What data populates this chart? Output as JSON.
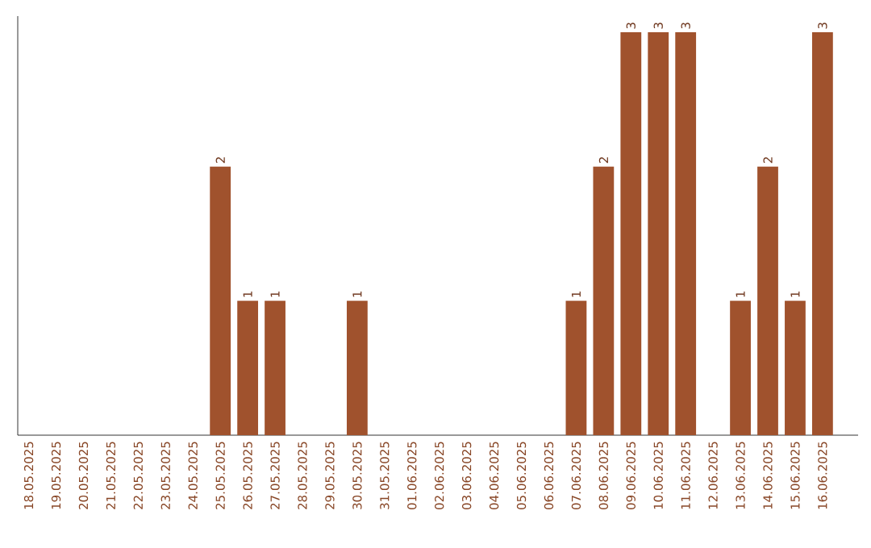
{
  "chart_data": {
    "type": "bar",
    "categories": [
      "18.05.2025",
      "19.05.2025",
      "20.05.2025",
      "21.05.2025",
      "22.05.2025",
      "23.05.2025",
      "24.05.2025",
      "25.05.2025",
      "26.05.2025",
      "27.05.2025",
      "28.05.2025",
      "29.05.2025",
      "30.05.2025",
      "31.05.2025",
      "01.06.2025",
      "02.06.2025",
      "03.06.2025",
      "04.06.2025",
      "05.06.2025",
      "06.06.2025",
      "07.06.2025",
      "08.06.2025",
      "09.06.2025",
      "10.06.2025",
      "11.06.2025",
      "12.06.2025",
      "13.06.2025",
      "14.06.2025",
      "15.06.2025",
      "16.06.2025"
    ],
    "values": [
      0,
      0,
      0,
      0,
      0,
      0,
      0,
      2,
      1,
      1,
      0,
      0,
      1,
      0,
      0,
      0,
      0,
      0,
      0,
      0,
      1,
      2,
      3,
      3,
      3,
      0,
      1,
      2,
      1,
      3
    ],
    "value_labels": [
      null,
      null,
      null,
      null,
      null,
      null,
      null,
      "2",
      "1",
      "1",
      null,
      null,
      "1",
      null,
      null,
      null,
      null,
      null,
      null,
      null,
      "1",
      "2",
      "3",
      "3",
      "3",
      null,
      "1",
      "2",
      "1",
      "3"
    ],
    "color": "#a0522d"
  }
}
